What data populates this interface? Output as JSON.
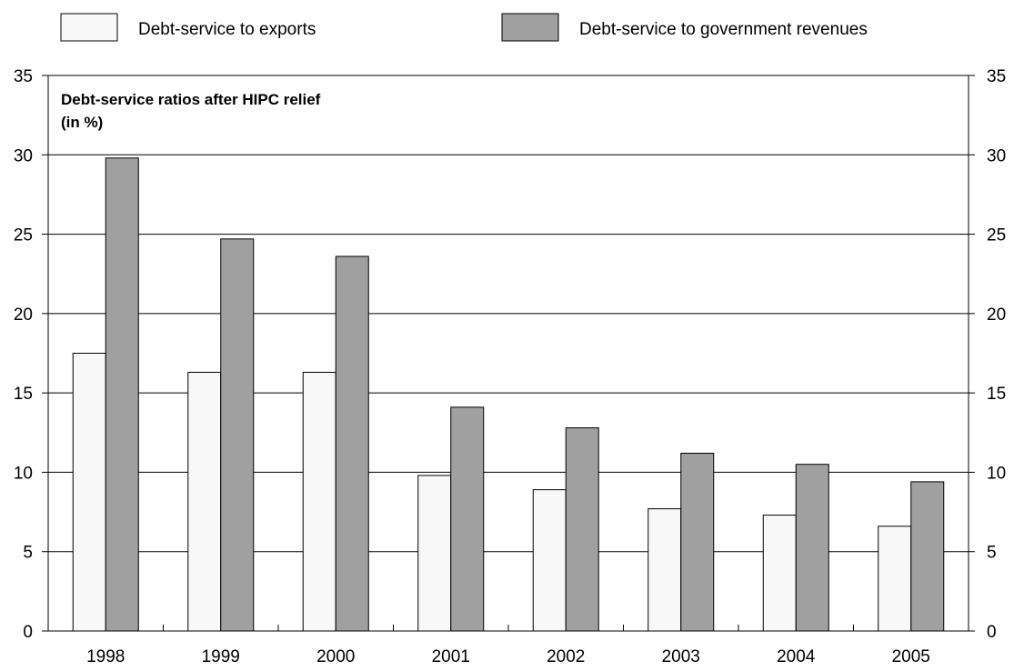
{
  "chart_data": {
    "type": "bar",
    "title_lines": [
      "Debt-service ratios after HIPC relief",
      "(in %)"
    ],
    "categories": [
      "1998",
      "1999",
      "2000",
      "2001",
      "2002",
      "2003",
      "2004",
      "2005"
    ],
    "series": [
      {
        "name": "Debt-service to exports",
        "color": "#f8f8f8",
        "values": [
          17.5,
          16.3,
          16.3,
          9.8,
          8.9,
          7.7,
          7.3,
          6.6
        ]
      },
      {
        "name": "Debt-service to government revenues",
        "color": "#a0a0a0",
        "values": [
          29.8,
          24.7,
          23.6,
          14.1,
          12.8,
          11.2,
          10.5,
          9.4
        ]
      }
    ],
    "ylim": [
      0,
      35
    ],
    "yticks": [
      "0",
      "5",
      "10",
      "15",
      "20",
      "25",
      "30",
      "35"
    ],
    "legend_position": "top",
    "grid": true,
    "right_axis": true
  }
}
